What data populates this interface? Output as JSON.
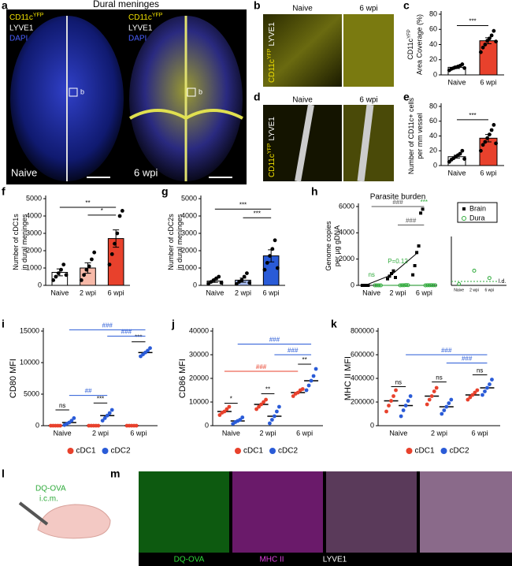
{
  "letters": {
    "a": "a",
    "b": "b",
    "c": "c",
    "d": "d",
    "e": "e",
    "f": "f",
    "g": "g",
    "h": "h",
    "i": "i",
    "j": "j",
    "k": "k",
    "l": "l",
    "m": "m"
  },
  "panel_a": {
    "title": "Dural meninges",
    "marker": [
      "CD11c",
      "YFP"
    ],
    "lyve": "LYVE1",
    "dapi": "DAPI",
    "left": "Naive",
    "right": "6 wpi",
    "inset_left": "b",
    "inset_right": "b"
  },
  "panel_b": {
    "columns": [
      "Naive",
      "6 wpi"
    ],
    "side": [
      "CD11c",
      "YFP",
      "LYVE1"
    ]
  },
  "panel_d": {
    "columns": [
      "Naive",
      "6 wpi"
    ],
    "side": [
      "CD11c",
      "YFP",
      "LYVE1"
    ]
  },
  "panel_l": {
    "reagent": "DQ-OVA",
    "route": "i.c.m."
  },
  "panel_m": {
    "channels": [
      "DQ-OVA",
      "MHC II",
      "LYVE1"
    ]
  },
  "chart_data": [
    {
      "type": "bar",
      "categories": [
        "Naive",
        "6 wpi"
      ],
      "values": [
        10,
        45
      ],
      "errors": [
        1.5,
        4
      ],
      "points": [
        [
          6,
          8,
          9,
          10,
          11,
          12,
          14,
          9
        ],
        [
          30,
          36,
          40,
          45,
          48,
          52,
          58,
          44
        ]
      ],
      "colors": [
        "#ffffff",
        "#e8412c"
      ],
      "ylabel": [
        "CD11c",
        "YFP",
        "Area Coverage (%)"
      ],
      "ylim": [
        0,
        80
      ],
      "yticks": [
        0,
        20,
        40,
        60,
        80
      ],
      "annotations": [
        {
          "text": "***",
          "color": "#000000"
        }
      ]
    },
    {
      "type": "bar",
      "categories": [
        "Naive",
        "6 wpi"
      ],
      "values": [
        12,
        37
      ],
      "errors": [
        2,
        5
      ],
      "points": [
        [
          5,
          8,
          10,
          12,
          14,
          16,
          20,
          9
        ],
        [
          20,
          28,
          32,
          37,
          42,
          48,
          55,
          30
        ]
      ],
      "colors": [
        "#ffffff",
        "#e8412c"
      ],
      "ylabel": [
        "Number of CD11c+ cells",
        "per mm vessel"
      ],
      "ylim": [
        0,
        80
      ],
      "yticks": [
        0,
        20,
        40,
        60,
        80
      ],
      "annotations": [
        {
          "text": "***",
          "color": "#000000"
        }
      ]
    },
    {
      "type": "bar",
      "categories": [
        "Naive",
        "2 wpi",
        "6 wpi"
      ],
      "values": [
        750,
        1000,
        2700
      ],
      "errors": [
        200,
        300,
        500
      ],
      "points": [
        [
          300,
          500,
          700,
          900,
          1200,
          600
        ],
        [
          300,
          600,
          900,
          1100,
          1500,
          1900
        ],
        [
          1200,
          1800,
          2400,
          3000,
          4000,
          4300
        ]
      ],
      "colors": [
        "#ffffff",
        "#f7b9a8",
        "#e8412c"
      ],
      "ylabel": [
        "Number of cDC1s",
        "in dural meninges"
      ],
      "ylim": [
        0,
        5000
      ],
      "yticks": [
        0,
        1000,
        2000,
        3000,
        4000,
        5000
      ],
      "annotations": [
        {
          "text": "**",
          "color": "#000000"
        },
        {
          "text": "*",
          "color": "#000000"
        }
      ]
    },
    {
      "type": "bar",
      "categories": [
        "Naive",
        "2 wpi",
        "6 wpi"
      ],
      "values": [
        250,
        300,
        1700
      ],
      "errors": [
        80,
        120,
        350
      ],
      "points": [
        [
          100,
          200,
          300,
          400,
          500,
          150
        ],
        [
          80,
          200,
          300,
          500,
          700,
          150
        ],
        [
          900,
          1300,
          1700,
          2100,
          2600,
          1000
        ]
      ],
      "colors": [
        "#ffffff",
        "#a9bdf2",
        "#2a5bd7"
      ],
      "ylabel": [
        "Number of cDC2s",
        "in dural meninges"
      ],
      "ylim": [
        0,
        5000
      ],
      "yticks": [
        0,
        1000,
        2000,
        3000,
        4000,
        5000
      ],
      "annotations": [
        {
          "text": "***",
          "color": "#000000"
        },
        {
          "text": "***",
          "color": "#000000"
        }
      ]
    },
    {
      "type": "line",
      "title": "Parasite burden",
      "categories": [
        "Naive",
        "2 wpi",
        "6 wpi"
      ],
      "ylabel": [
        "Genome copies",
        "per µg gDNA"
      ],
      "ylim": [
        0,
        6000
      ],
      "yticks": [
        0,
        2000,
        4000,
        6000
      ],
      "legend": "upper right",
      "series": [
        {
          "name": "Brain",
          "color": "#000000",
          "values": [
            0,
            800,
            2500
          ],
          "points": [
            [
              0,
              0,
              0,
              0
            ],
            [
              500,
              700,
              900,
              1100,
              600
            ],
            [
              800,
              1500,
              2500,
              3000,
              5500,
              5800
            ]
          ]
        },
        {
          "name": "Dura",
          "color": "#2eaa3a",
          "values": [
            0,
            10,
            8
          ],
          "points": [
            [
              0,
              0,
              0,
              0
            ],
            [
              0,
              5,
              10,
              20,
              15
            ],
            [
              0,
              5,
              8,
              12,
              6,
              10
            ]
          ]
        }
      ],
      "inset": {
        "values": [
          1,
          12,
          6
        ],
        "ylim": [
          0,
          40
        ],
        "label": "l.d."
      },
      "annotations": [
        {
          "text": "###",
          "color": "#555555"
        },
        {
          "text": "ns",
          "color": "#2eaa3a"
        },
        {
          "text": "P=0.12",
          "color": "#2eaa3a"
        },
        {
          "text": "###",
          "color": "#555555"
        },
        {
          "text": "***",
          "color": "#2eaa3a"
        }
      ]
    },
    {
      "type": "dot",
      "categories": [
        "Naive",
        "2 wpi",
        "6 wpi"
      ],
      "ylabel": [
        "CD80 MFI"
      ],
      "ylim": [
        0,
        15000
      ],
      "yticks": [
        0,
        5000,
        10000,
        15000
      ],
      "series": [
        {
          "name": "cDC1",
          "color": "#e8412c",
          "values": [
            0,
            0,
            0
          ],
          "points": [
            [
              0,
              0,
              0,
              0,
              0
            ],
            [
              0,
              0,
              0,
              0,
              0
            ],
            [
              0,
              0,
              0,
              0,
              0
            ]
          ]
        },
        {
          "name": "cDC2",
          "color": "#2a5bd7",
          "values": [
            500,
            1600,
            11600
          ],
          "points": [
            [
              100,
              300,
              500,
              800,
              1200
            ],
            [
              800,
              1200,
              1600,
              2000,
              2500
            ],
            [
              11000,
              11300,
              11600,
              11900,
              12300
            ]
          ]
        }
      ],
      "annotations": [
        {
          "text": "ns",
          "color": "#000000"
        },
        {
          "text": "***",
          "color": "#000000"
        },
        {
          "text": "***",
          "color": "#000000"
        },
        {
          "text": "##",
          "color": "#2a5bd7"
        },
        {
          "text": "###",
          "color": "#2a5bd7"
        },
        {
          "text": "###",
          "color": "#2a5bd7"
        }
      ]
    },
    {
      "type": "dot",
      "categories": [
        "Naive",
        "2 wpi",
        "6 wpi"
      ],
      "ylabel": [
        "CD86 MFI"
      ],
      "ylim": [
        0,
        40000
      ],
      "yticks": [
        0,
        10000,
        20000,
        30000,
        40000
      ],
      "series": [
        {
          "name": "cDC1",
          "color": "#e8412c",
          "values": [
            6000,
            9000,
            14000
          ],
          "points": [
            [
              4500,
              5500,
              6000,
              7000,
              8000
            ],
            [
              7000,
              8000,
              9000,
              10000,
              11000
            ],
            [
              12500,
              13500,
              14000,
              15000,
              15500
            ]
          ]
        },
        {
          "name": "cDC2",
          "color": "#2a5bd7",
          "values": [
            2000,
            4000,
            19000
          ],
          "points": [
            [
              800,
              1500,
              2000,
              2500,
              3500
            ],
            [
              1000,
              2500,
              4000,
              6000,
              8000
            ],
            [
              15000,
              17000,
              19000,
              21000,
              24000
            ]
          ]
        }
      ],
      "annotations": [
        {
          "text": "*",
          "color": "#000000"
        },
        {
          "text": "**",
          "color": "#000000"
        },
        {
          "text": "**",
          "color": "#000000"
        },
        {
          "text": "###",
          "color": "#e8412c"
        },
        {
          "text": "###",
          "color": "#2a5bd7"
        },
        {
          "text": "###",
          "color": "#2a5bd7"
        }
      ]
    },
    {
      "type": "dot",
      "categories": [
        "Naive",
        "2 wpi",
        "6 wpi"
      ],
      "ylabel": [
        "MHC II MFI"
      ],
      "ylim": [
        0,
        800000
      ],
      "yticks": [
        0,
        200000,
        400000,
        600000,
        800000
      ],
      "series": [
        {
          "name": "cDC1",
          "color": "#e8412c",
          "values": [
            210000,
            250000,
            260000
          ],
          "points": [
            [
              120000,
              170000,
              210000,
              250000,
              300000
            ],
            [
              180000,
              220000,
              250000,
              290000,
              320000
            ],
            [
              220000,
              240000,
              260000,
              280000,
              300000
            ]
          ]
        },
        {
          "name": "cDC2",
          "color": "#2a5bd7",
          "values": [
            170000,
            160000,
            320000
          ],
          "points": [
            [
              80000,
              130000,
              170000,
              210000,
              250000
            ],
            [
              100000,
              130000,
              160000,
              190000,
              220000
            ],
            [
              260000,
              290000,
              320000,
              350000,
              390000
            ]
          ]
        }
      ],
      "annotations": [
        {
          "text": "ns",
          "color": "#000000"
        },
        {
          "text": "ns",
          "color": "#000000"
        },
        {
          "text": "ns",
          "color": "#000000"
        },
        {
          "text": "###",
          "color": "#2a5bd7"
        },
        {
          "text": "###",
          "color": "#2a5bd7"
        }
      ]
    }
  ]
}
